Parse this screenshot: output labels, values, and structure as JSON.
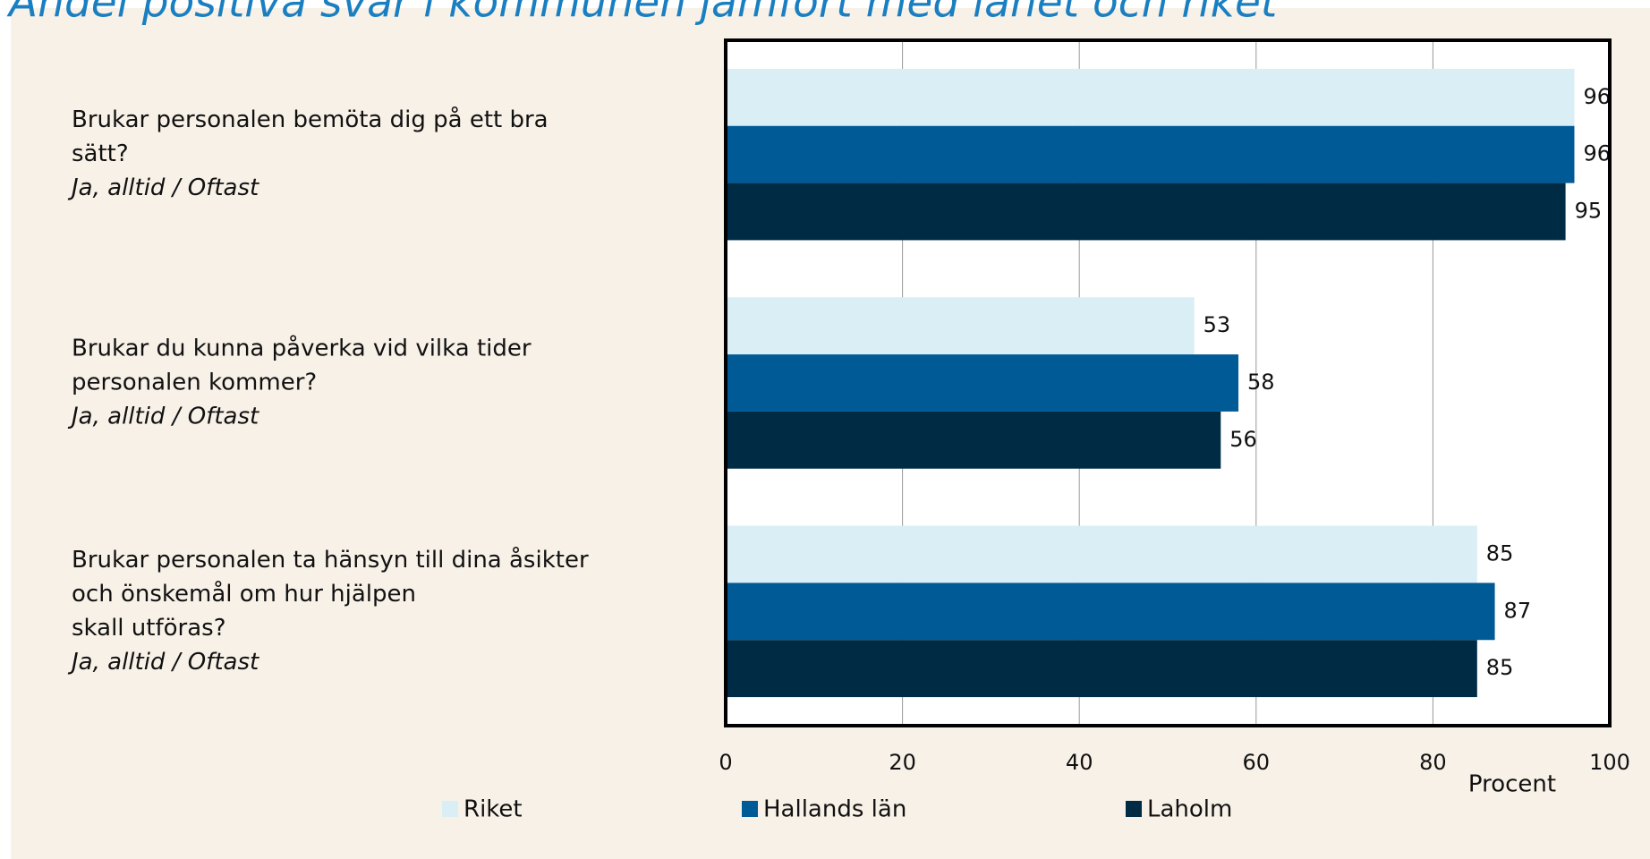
{
  "chart_data": {
    "type": "bar",
    "orientation": "horizontal",
    "title": "Andel positiva svar i kommunen jämfört med länet och riket",
    "categories": [
      [
        "Brukar personalen bemöta dig på ett bra",
        "sätt?",
        "Ja, alltid / Oftast"
      ],
      [
        "Brukar du kunna påverka vid vilka tider",
        "personalen kommer?",
        "Ja, alltid / Oftast"
      ],
      [
        "Brukar personalen ta hänsyn till dina åsikter",
        "och önskemål om hur hjälpen",
        "skall utföras?",
        "Ja, alltid / Oftast"
      ]
    ],
    "series": [
      {
        "name": "Riket",
        "color": "#daeef5",
        "values": [
          96,
          53,
          85
        ]
      },
      {
        "name": "Hallands län",
        "color": "#005a96",
        "values": [
          96,
          58,
          87
        ]
      },
      {
        "name": "Laholm",
        "color": "#002b45",
        "values": [
          95,
          56,
          85
        ]
      }
    ],
    "xlabel": "Procent",
    "xlim": [
      0,
      100
    ],
    "xticks": [
      0,
      20,
      40,
      60,
      80,
      100
    ],
    "grid": true
  }
}
